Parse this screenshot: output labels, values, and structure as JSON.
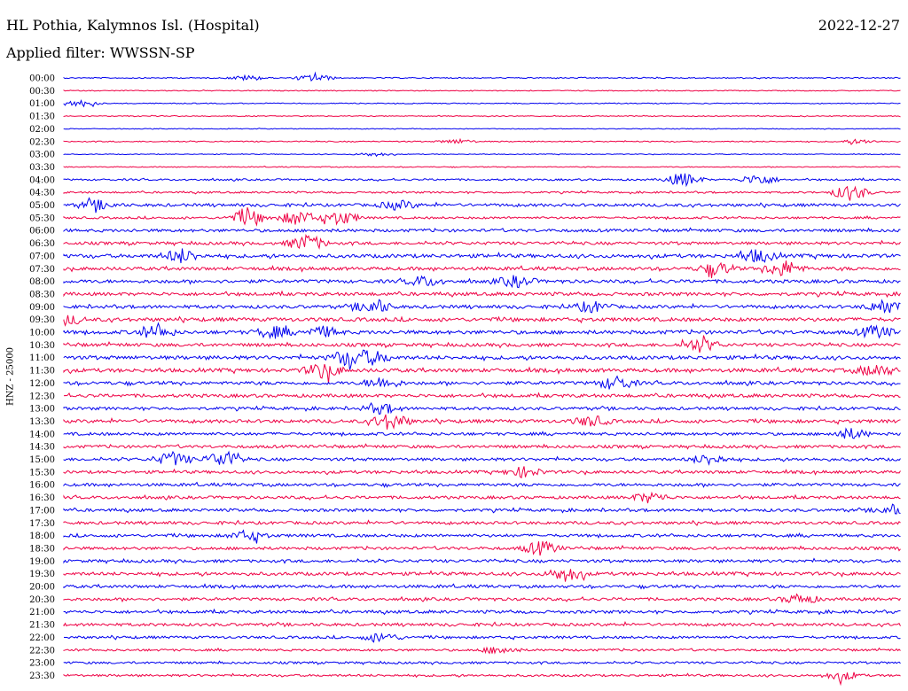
{
  "header": {
    "station": "HL Pothia, Kalymnos Isl. (Hospital)",
    "date": "2022-12-27",
    "filter": "Applied filter: WWSSN-SP"
  },
  "chart_data": {
    "type": "line",
    "title": "HL Pothia, Kalymnos Isl. (Hospital)",
    "ylabel": "HNZ - 25000",
    "colors": [
      "#0000ee",
      "#ee0044"
    ],
    "traces": [
      {
        "label": "00:00",
        "amp": 0.6,
        "events": [
          [
            22,
            0.9
          ],
          [
            30,
            1.2
          ]
        ]
      },
      {
        "label": "00:30",
        "amp": 0.5,
        "events": []
      },
      {
        "label": "01:00",
        "amp": 0.5,
        "events": [
          [
            2,
            1.2
          ]
        ]
      },
      {
        "label": "01:30",
        "amp": 0.5,
        "events": []
      },
      {
        "label": "02:00",
        "amp": 0.4,
        "events": []
      },
      {
        "label": "02:30",
        "amp": 0.6,
        "events": [
          [
            47,
            0.8
          ],
          [
            95,
            0.8
          ]
        ]
      },
      {
        "label": "03:00",
        "amp": 0.4,
        "events": [
          [
            37,
            0.7
          ]
        ]
      },
      {
        "label": "03:30",
        "amp": 0.5,
        "events": []
      },
      {
        "label": "04:00",
        "amp": 1.0,
        "events": [
          [
            74,
            2.5
          ],
          [
            83,
            2.0
          ]
        ]
      },
      {
        "label": "04:30",
        "amp": 1.0,
        "events": [
          [
            94,
            3.0
          ]
        ]
      },
      {
        "label": "05:00",
        "amp": 1.6,
        "events": [
          [
            4,
            1.6
          ],
          [
            40,
            1.6
          ]
        ]
      },
      {
        "label": "05:30",
        "amp": 1.2,
        "events": [
          [
            22,
            2.8
          ],
          [
            28,
            2.8
          ],
          [
            33,
            2.6
          ]
        ]
      },
      {
        "label": "06:00",
        "amp": 1.6,
        "events": []
      },
      {
        "label": "06:30",
        "amp": 1.6,
        "events": [
          [
            29,
            3.0
          ]
        ]
      },
      {
        "label": "07:00",
        "amp": 2.0,
        "events": [
          [
            14,
            2.4
          ],
          [
            83,
            2.2
          ]
        ]
      },
      {
        "label": "07:30",
        "amp": 1.8,
        "events": [
          [
            78,
            2.2
          ],
          [
            86,
            3.0
          ]
        ]
      },
      {
        "label": "08:00",
        "amp": 1.8,
        "events": [
          [
            43,
            1.8
          ],
          [
            54,
            2.0
          ]
        ]
      },
      {
        "label": "08:30",
        "amp": 1.8,
        "events": []
      },
      {
        "label": "09:00",
        "amp": 1.8,
        "events": [
          [
            37,
            2.5
          ],
          [
            63,
            2.0
          ],
          [
            98,
            2.2
          ]
        ]
      },
      {
        "label": "09:30",
        "amp": 2.0,
        "events": [
          [
            0,
            2.0
          ]
        ]
      },
      {
        "label": "10:00",
        "amp": 2.0,
        "events": [
          [
            11,
            2.2
          ],
          [
            25,
            2.0
          ],
          [
            31,
            1.8
          ],
          [
            97,
            2.2
          ]
        ]
      },
      {
        "label": "10:30",
        "amp": 1.8,
        "events": [
          [
            76,
            2.4
          ]
        ]
      },
      {
        "label": "11:00",
        "amp": 2.0,
        "events": [
          [
            34,
            3.0
          ],
          [
            37,
            2.2
          ]
        ]
      },
      {
        "label": "11:30",
        "amp": 2.0,
        "events": [
          [
            31,
            2.8
          ],
          [
            97,
            2.2
          ]
        ]
      },
      {
        "label": "12:00",
        "amp": 1.8,
        "events": [
          [
            38,
            2.0
          ],
          [
            66,
            2.5
          ]
        ]
      },
      {
        "label": "12:30",
        "amp": 1.8,
        "events": []
      },
      {
        "label": "13:00",
        "amp": 1.6,
        "events": [
          [
            38,
            1.8
          ]
        ]
      },
      {
        "label": "13:30",
        "amp": 1.8,
        "events": [
          [
            39,
            3.0
          ],
          [
            63,
            1.8
          ]
        ]
      },
      {
        "label": "14:00",
        "amp": 1.6,
        "events": [
          [
            94,
            1.8
          ]
        ]
      },
      {
        "label": "14:30",
        "amp": 1.6,
        "events": []
      },
      {
        "label": "15:00",
        "amp": 1.6,
        "events": [
          [
            13,
            2.5
          ],
          [
            19,
            2.8
          ],
          [
            77,
            1.8
          ]
        ]
      },
      {
        "label": "15:30",
        "amp": 1.6,
        "events": [
          [
            55,
            1.8
          ]
        ]
      },
      {
        "label": "16:00",
        "amp": 1.6,
        "events": []
      },
      {
        "label": "16:30",
        "amp": 1.6,
        "events": [
          [
            70,
            1.8
          ]
        ]
      },
      {
        "label": "17:00",
        "amp": 1.6,
        "events": [
          [
            99,
            1.6
          ]
        ]
      },
      {
        "label": "17:30",
        "amp": 1.6,
        "events": []
      },
      {
        "label": "18:00",
        "amp": 1.6,
        "events": [
          [
            22,
            1.8
          ]
        ]
      },
      {
        "label": "18:30",
        "amp": 1.6,
        "events": [
          [
            57,
            2.5
          ]
        ]
      },
      {
        "label": "19:00",
        "amp": 1.6,
        "events": []
      },
      {
        "label": "19:30",
        "amp": 1.8,
        "events": [
          [
            60,
            2.6
          ]
        ]
      },
      {
        "label": "20:00",
        "amp": 1.6,
        "events": []
      },
      {
        "label": "20:30",
        "amp": 1.6,
        "events": [
          [
            88,
            1.8
          ]
        ]
      },
      {
        "label": "21:00",
        "amp": 1.6,
        "events": []
      },
      {
        "label": "21:30",
        "amp": 1.6,
        "events": []
      },
      {
        "label": "22:00",
        "amp": 1.4,
        "events": [
          [
            38,
            1.6
          ]
        ]
      },
      {
        "label": "22:30",
        "amp": 1.2,
        "events": [
          [
            52,
            1.4
          ]
        ]
      },
      {
        "label": "23:00",
        "amp": 1.2,
        "events": []
      },
      {
        "label": "23:30",
        "amp": 1.2,
        "events": [
          [
            93,
            1.6
          ]
        ]
      }
    ]
  }
}
